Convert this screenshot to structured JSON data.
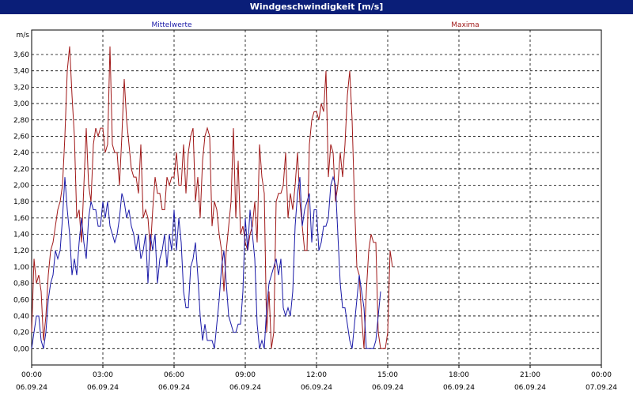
{
  "window": {
    "title": "Windgeschwindigkeit [m/s]"
  },
  "colors": {
    "mean": "#1a1aa8",
    "max": "#a01818",
    "grid": "#000000",
    "titlebar": "#0a1e78"
  },
  "chart_data": {
    "type": "line",
    "title": "Windgeschwindigkeit [m/s]",
    "ylabel": "m/s",
    "ylim": [
      -0.2,
      3.9
    ],
    "yticks": [
      "0,00",
      "0,20",
      "0,40",
      "0,60",
      "0,80",
      "1,00",
      "1,20",
      "1,40",
      "1,60",
      "1,80",
      "2,00",
      "2,20",
      "2,40",
      "2,60",
      "2,80",
      "3,00",
      "3,20",
      "3,40",
      "3,60"
    ],
    "xlim": [
      0,
      24
    ],
    "xticks": [
      {
        "time": "00:00",
        "date": "06.09.24"
      },
      {
        "time": "03:00",
        "date": "06.09.24"
      },
      {
        "time": "06:00",
        "date": "06.09.24"
      },
      {
        "time": "09:00",
        "date": "06.09.24"
      },
      {
        "time": "12:00",
        "date": "06.09.24"
      },
      {
        "time": "15:00",
        "date": "06.09.24"
      },
      {
        "time": "18:00",
        "date": "06.09.24"
      },
      {
        "time": "21:00",
        "date": "06.09.24"
      },
      {
        "time": "00:00",
        "date": "07.09.24"
      }
    ],
    "grid": true,
    "series": [
      {
        "name": "Mittelwerte",
        "x_step_hours": 0.1,
        "values": [
          0.0,
          0.2,
          0.4,
          0.4,
          0.1,
          0.0,
          0.2,
          0.6,
          0.8,
          0.9,
          1.2,
          1.1,
          1.2,
          1.6,
          2.1,
          1.7,
          1.4,
          0.9,
          1.1,
          0.9,
          1.3,
          1.6,
          1.3,
          1.1,
          1.6,
          1.8,
          1.7,
          1.7,
          1.5,
          1.5,
          1.8,
          1.6,
          1.8,
          1.5,
          1.4,
          1.3,
          1.4,
          1.6,
          1.9,
          1.8,
          1.6,
          1.7,
          1.5,
          1.4,
          1.2,
          1.4,
          1.1,
          1.2,
          1.4,
          0.8,
          1.4,
          1.2,
          1.4,
          0.8,
          1.1,
          1.2,
          1.4,
          1.0,
          1.4,
          1.2,
          1.7,
          1.2,
          1.6,
          1.3,
          0.7,
          0.5,
          0.5,
          1.0,
          1.1,
          1.3,
          0.9,
          0.4,
          0.1,
          0.3,
          0.1,
          0.1,
          0.1,
          0.0,
          0.3,
          0.6,
          1.0,
          1.2,
          0.8,
          0.4,
          0.3,
          0.2,
          0.2,
          0.3,
          0.3,
          0.7,
          1.6,
          1.2,
          1.7,
          1.4,
          1.1,
          0.3,
          0.0,
          0.1,
          0.0,
          0.5,
          0.8,
          0.9,
          1.0,
          1.1,
          0.9,
          1.1,
          0.5,
          0.4,
          0.5,
          0.4,
          0.7,
          1.5,
          1.9,
          2.1,
          1.5,
          1.7,
          1.8,
          1.9,
          1.3,
          1.7,
          1.7,
          1.2,
          1.3,
          1.5,
          1.5,
          1.6,
          2.0,
          2.1,
          2.0,
          1.4,
          0.8,
          0.5,
          0.5,
          0.3,
          0.1,
          0.0,
          0.3,
          0.6,
          0.9,
          0.7,
          0.5,
          0.0,
          0.0,
          0.0,
          0.0,
          0.1,
          0.4,
          0.7
        ]
      },
      {
        "name": "Maxima",
        "x_step_hours": 0.1,
        "values": [
          0.2,
          1.1,
          0.8,
          0.9,
          0.7,
          0.1,
          0.4,
          0.9,
          1.2,
          1.3,
          1.5,
          1.7,
          1.8,
          2.0,
          2.6,
          3.4,
          3.7,
          3.1,
          2.6,
          1.6,
          1.7,
          1.3,
          2.0,
          2.7,
          2.0,
          1.8,
          2.5,
          2.7,
          2.6,
          2.7,
          2.7,
          2.4,
          2.5,
          3.7,
          2.5,
          2.4,
          2.4,
          2.0,
          2.6,
          3.3,
          2.8,
          2.5,
          2.2,
          2.1,
          2.1,
          1.9,
          2.5,
          1.6,
          1.7,
          1.6,
          1.2,
          1.7,
          2.1,
          1.9,
          1.9,
          1.7,
          1.7,
          2.1,
          2.0,
          2.1,
          2.1,
          2.4,
          2.0,
          2.0,
          2.5,
          1.9,
          2.4,
          2.6,
          2.7,
          1.8,
          2.1,
          1.6,
          2.3,
          2.6,
          2.7,
          2.6,
          1.5,
          1.8,
          1.7,
          1.4,
          1.2,
          0.7,
          1.2,
          1.5,
          1.8,
          2.7,
          1.6,
          2.3,
          1.4,
          1.5,
          1.3,
          1.2,
          1.4,
          1.5,
          1.8,
          1.3,
          2.5,
          2.1,
          1.9,
          0.2,
          0.7,
          0.0,
          0.2,
          1.8,
          1.9,
          1.9,
          2.0,
          2.4,
          1.6,
          1.9,
          1.7,
          2.0,
          2.4,
          1.8,
          1.5,
          1.2,
          1.2,
          2.5,
          2.8,
          2.9,
          2.9,
          2.8,
          3.0,
          2.9,
          3.4,
          2.1,
          2.5,
          2.4,
          1.8,
          2.0,
          2.4,
          2.1,
          2.5,
          3.1,
          3.4,
          2.8,
          1.8,
          1.0,
          0.9,
          0.4,
          0.0,
          0.7,
          1.2,
          1.4,
          1.3,
          1.3,
          0.2,
          0.0,
          0.0,
          0.0,
          0.2,
          1.2,
          1.0
        ]
      }
    ]
  }
}
